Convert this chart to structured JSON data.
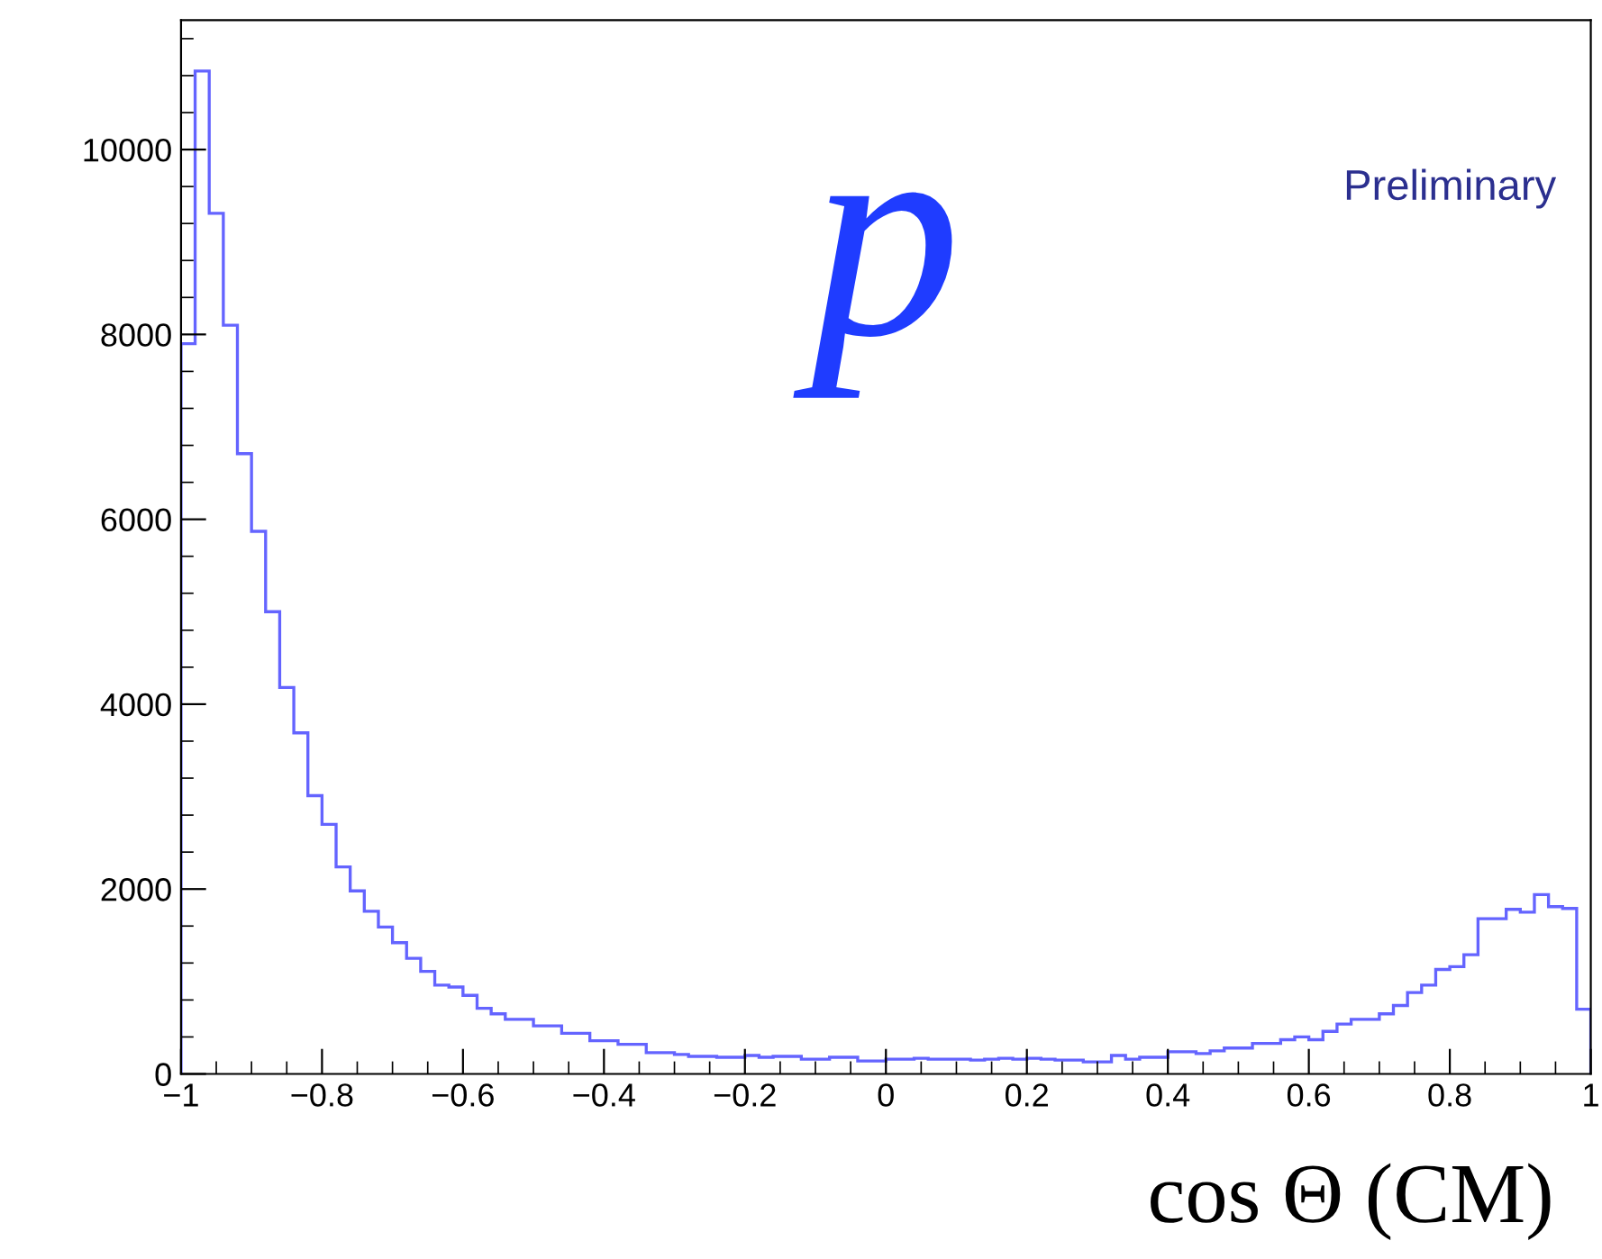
{
  "chart_data": {
    "type": "histogram",
    "xlabel": "cos Θ (CM)",
    "annotations": [
      "p",
      "Preliminary"
    ],
    "color": "#6464ff",
    "bins": [
      -1.0,
      -0.98,
      -0.96,
      -0.94,
      -0.92,
      -0.9,
      -0.88,
      -0.86,
      -0.84,
      -0.82,
      -0.8,
      -0.78,
      -0.76,
      -0.74,
      -0.72,
      -0.7,
      -0.68,
      -0.66,
      -0.64,
      -0.62,
      -0.6,
      -0.58,
      -0.56,
      -0.54,
      -0.52,
      -0.5,
      -0.48,
      -0.46,
      -0.44,
      -0.42,
      -0.4,
      -0.38,
      -0.36,
      -0.34,
      -0.32,
      -0.3,
      -0.28,
      -0.26,
      -0.24,
      -0.22,
      -0.2,
      -0.18,
      -0.16,
      -0.14,
      -0.12,
      -0.1,
      -0.08,
      -0.06,
      -0.04,
      -0.02,
      0.0,
      0.02,
      0.04,
      0.06,
      0.08,
      0.1,
      0.12,
      0.14,
      0.16,
      0.18,
      0.2,
      0.22,
      0.24,
      0.26,
      0.28,
      0.3,
      0.32,
      0.34,
      0.36,
      0.38,
      0.4,
      0.42,
      0.44,
      0.46,
      0.48,
      0.5,
      0.52,
      0.54,
      0.56,
      0.58,
      0.6,
      0.62,
      0.64,
      0.66,
      0.68,
      0.7,
      0.72,
      0.74,
      0.76,
      0.78,
      0.8,
      0.82,
      0.84,
      0.86,
      0.88,
      0.9,
      0.92,
      0.94,
      0.96,
      0.98,
      1.0
    ],
    "values": [
      7900,
      10850,
      9310,
      8100,
      6710,
      5870,
      5000,
      4180,
      3690,
      3010,
      2700,
      2240,
      1980,
      1760,
      1590,
      1420,
      1250,
      1110,
      960,
      940,
      850,
      710,
      650,
      590,
      590,
      520,
      520,
      440,
      440,
      360,
      360,
      320,
      320,
      230,
      230,
      210,
      190,
      190,
      180,
      180,
      200,
      180,
      190,
      190,
      160,
      160,
      180,
      180,
      140,
      140,
      160,
      160,
      170,
      160,
      160,
      160,
      150,
      160,
      170,
      160,
      170,
      160,
      150,
      150,
      130,
      130,
      200,
      160,
      180,
      180,
      240,
      240,
      220,
      250,
      280,
      280,
      330,
      330,
      370,
      400,
      370,
      460,
      540,
      590,
      590,
      650,
      740,
      880,
      960,
      1130,
      1160,
      1290,
      1680,
      1680,
      1780,
      1750,
      1940,
      1810,
      1790,
      700
    ],
    "xlim": [
      -1,
      1
    ],
    "ylim": [
      0,
      11400
    ],
    "xticks": [
      {
        "value": -1,
        "label": "−1"
      },
      {
        "value": -0.8,
        "label": "−0.8"
      },
      {
        "value": -0.6,
        "label": "−0.6"
      },
      {
        "value": -0.4,
        "label": "−0.4"
      },
      {
        "value": -0.2,
        "label": "−0.2"
      },
      0,
      {
        "value": 0.2,
        "label": "0.2"
      },
      {
        "value": 0.4,
        "label": "0.4"
      },
      {
        "value": 0.6,
        "label": "0.6"
      },
      {
        "value": 0.8,
        "label": "0.8"
      },
      1
    ],
    "yticks": [
      0,
      2000,
      4000,
      6000,
      8000,
      10000
    ],
    "grid": false,
    "legend": false
  }
}
